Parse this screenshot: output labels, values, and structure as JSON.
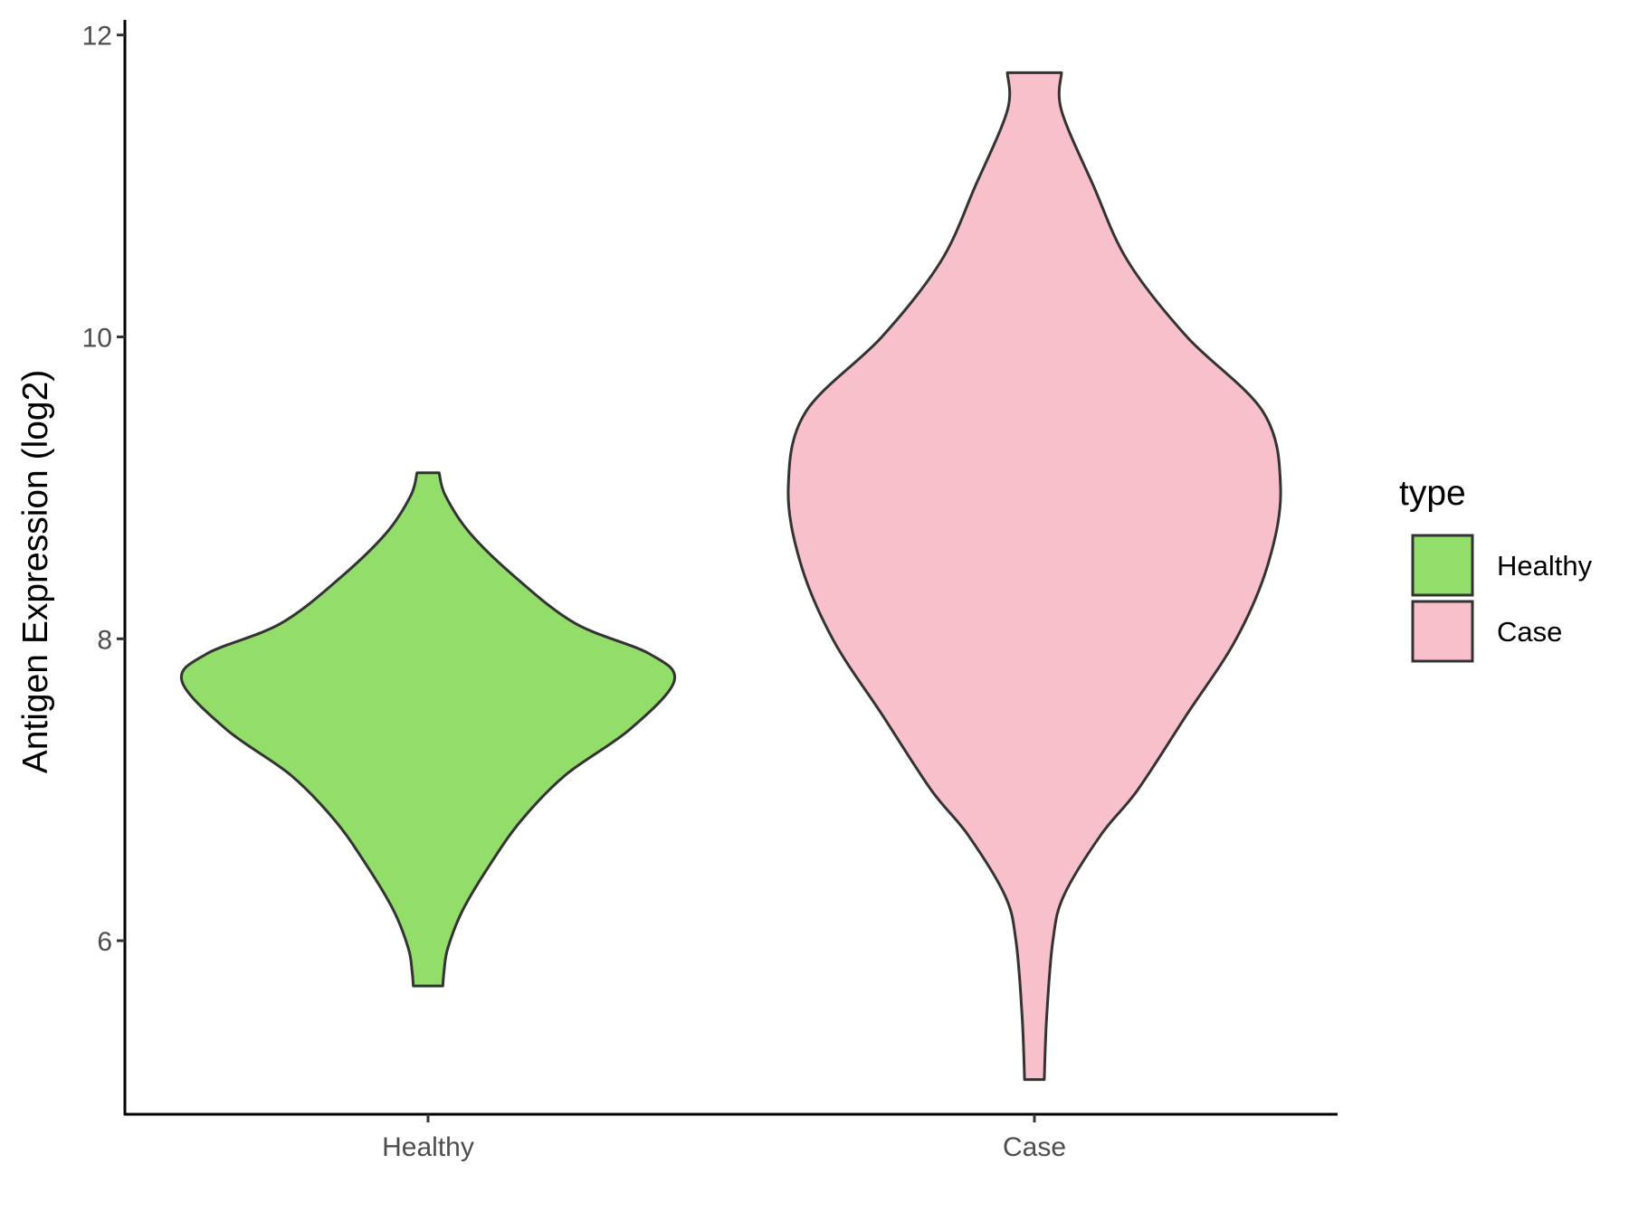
{
  "chart_data": {
    "type": "violin",
    "title": "",
    "xlabel": "",
    "ylabel": "Antigen Expression (log2)",
    "ylim": [
      4.85,
      12.1
    ],
    "yticks": [
      6,
      8,
      10,
      12
    ],
    "categories": [
      "Healthy",
      "Case"
    ],
    "grid": false,
    "legend": {
      "title": "type",
      "position": "right",
      "entries": [
        {
          "label": "Healthy",
          "color": "#93dd6b"
        },
        {
          "label": "Case",
          "color": "#f7c0cb"
        }
      ]
    },
    "series": [
      {
        "name": "Healthy",
        "color": "#93dd6b",
        "min": 5.7,
        "max": 9.1,
        "density_profile": [
          [
            5.7,
            0.06
          ],
          [
            5.8,
            0.065
          ],
          [
            5.95,
            0.08
          ],
          [
            6.2,
            0.14
          ],
          [
            6.5,
            0.25
          ],
          [
            6.8,
            0.38
          ],
          [
            7.1,
            0.56
          ],
          [
            7.4,
            0.82
          ],
          [
            7.72,
            1.0
          ],
          [
            7.9,
            0.9
          ],
          [
            8.1,
            0.6
          ],
          [
            8.4,
            0.36
          ],
          [
            8.7,
            0.17
          ],
          [
            8.95,
            0.07
          ],
          [
            9.1,
            0.045
          ]
        ]
      },
      {
        "name": "Case",
        "color": "#f7c0cb",
        "min": 5.08,
        "max": 11.75,
        "density_profile": [
          [
            5.08,
            0.04
          ],
          [
            5.5,
            0.05
          ],
          [
            6.0,
            0.075
          ],
          [
            6.3,
            0.12
          ],
          [
            6.7,
            0.27
          ],
          [
            7.0,
            0.42
          ],
          [
            7.5,
            0.62
          ],
          [
            8.0,
            0.82
          ],
          [
            8.5,
            0.95
          ],
          [
            9.0,
            1.0
          ],
          [
            9.5,
            0.93
          ],
          [
            10.0,
            0.62
          ],
          [
            10.5,
            0.38
          ],
          [
            11.0,
            0.24
          ],
          [
            11.5,
            0.11
          ],
          [
            11.75,
            0.11
          ]
        ]
      }
    ]
  }
}
